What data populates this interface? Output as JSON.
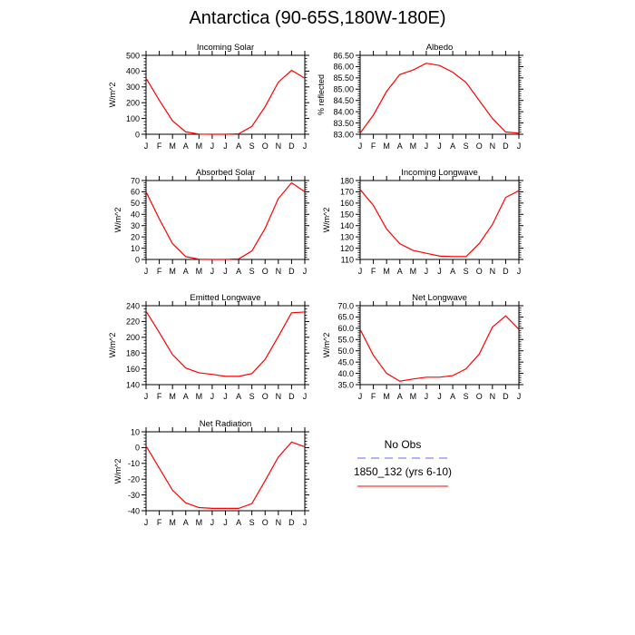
{
  "title": "Antarctica (90-65S,180W-180E)",
  "colors": {
    "model_line": "#ff0000",
    "obs_line": "#6666ff",
    "axis": "#000000",
    "background": "#ffffff"
  },
  "legend": {
    "obs_label": "No Obs",
    "model_label": "1850_132 (yrs 6-10)"
  },
  "chart_data": [
    {
      "type": "line",
      "title": "Incoming Solar",
      "ylabel": "W/m^2",
      "xlabel": "",
      "categories": [
        "J",
        "F",
        "M",
        "A",
        "M",
        "J",
        "J",
        "A",
        "S",
        "O",
        "N",
        "D",
        "J"
      ],
      "ylim": [
        0,
        500
      ],
      "yticks": [
        0,
        100,
        200,
        300,
        400,
        500
      ],
      "ytick_labels": [
        "0",
        "100",
        "200",
        "300",
        "400",
        "500"
      ],
      "series": [
        {
          "values": [
            355,
            215,
            85,
            15,
            1,
            0,
            0,
            3,
            50,
            175,
            330,
            405,
            355
          ]
        }
      ]
    },
    {
      "type": "line",
      "title": "Albedo",
      "ylabel": "% reflected",
      "xlabel": "",
      "categories": [
        "J",
        "F",
        "M",
        "A",
        "M",
        "J",
        "J",
        "A",
        "S",
        "O",
        "N",
        "D",
        "J"
      ],
      "ylim": [
        83.0,
        86.5
      ],
      "yticks": [
        83.0,
        83.5,
        84.0,
        84.5,
        85.0,
        85.5,
        86.0,
        86.5
      ],
      "ytick_labels": [
        "83.00",
        "83.50",
        "84.00",
        "84.50",
        "85.00",
        "85.50",
        "86.00",
        "86.50"
      ],
      "series": [
        {
          "values": [
            83.05,
            83.85,
            84.9,
            85.65,
            85.85,
            86.15,
            86.05,
            85.75,
            85.3,
            84.5,
            83.7,
            83.1,
            83.05
          ]
        }
      ]
    },
    {
      "type": "line",
      "title": "Absorbed Solar",
      "ylabel": "W/m^2",
      "xlabel": "",
      "categories": [
        "J",
        "F",
        "M",
        "A",
        "M",
        "J",
        "J",
        "A",
        "S",
        "O",
        "N",
        "D",
        "J"
      ],
      "ylim": [
        0,
        70
      ],
      "yticks": [
        0,
        10,
        20,
        30,
        40,
        50,
        60,
        70
      ],
      "ytick_labels": [
        "0",
        "10",
        "20",
        "30",
        "40",
        "50",
        "60",
        "70"
      ],
      "series": [
        {
          "values": [
            60,
            36,
            14,
            2.5,
            0.2,
            0,
            0,
            0.5,
            7.5,
            27.5,
            54,
            68,
            60
          ]
        }
      ]
    },
    {
      "type": "line",
      "title": "Incoming Longwave",
      "ylabel": "W/m^2",
      "xlabel": "",
      "categories": [
        "J",
        "F",
        "M",
        "A",
        "M",
        "J",
        "J",
        "A",
        "S",
        "O",
        "N",
        "D",
        "J"
      ],
      "ylim": [
        110,
        180
      ],
      "yticks": [
        110,
        120,
        130,
        140,
        150,
        160,
        170,
        180
      ],
      "ytick_labels": [
        "110",
        "120",
        "130",
        "140",
        "150",
        "160",
        "170",
        "180"
      ],
      "series": [
        {
          "values": [
            172,
            158,
            137,
            124,
            118,
            115.5,
            113,
            112.5,
            112.5,
            124,
            141,
            165,
            171
          ]
        }
      ]
    },
    {
      "type": "line",
      "title": "Emitted Longwave",
      "ylabel": "W/m^2",
      "xlabel": "",
      "categories": [
        "J",
        "F",
        "M",
        "A",
        "M",
        "J",
        "J",
        "A",
        "S",
        "O",
        "N",
        "D",
        "J"
      ],
      "ylim": [
        140,
        240
      ],
      "yticks": [
        140,
        160,
        180,
        200,
        220,
        240
      ],
      "ytick_labels": [
        "140",
        "160",
        "180",
        "200",
        "220",
        "240"
      ],
      "series": [
        {
          "values": [
            233,
            206,
            178,
            161,
            155,
            153,
            150.5,
            150.5,
            154,
            172,
            201,
            231,
            232
          ]
        }
      ]
    },
    {
      "type": "line",
      "title": "Net Longwave",
      "ylabel": "W/m^2",
      "xlabel": "",
      "categories": [
        "J",
        "F",
        "M",
        "A",
        "M",
        "J",
        "J",
        "A",
        "S",
        "O",
        "N",
        "D",
        "J"
      ],
      "ylim": [
        35,
        70
      ],
      "yticks": [
        35,
        40,
        45,
        50,
        55,
        60,
        65,
        70
      ],
      "ytick_labels": [
        "35.0",
        "40.0",
        "45.0",
        "50.0",
        "55.0",
        "60.0",
        "65.0",
        "70.0"
      ],
      "series": [
        {
          "values": [
            59.5,
            48,
            40,
            36.5,
            37.5,
            38.3,
            38.3,
            39,
            42,
            48.5,
            60.5,
            65.5,
            59.5
          ]
        }
      ]
    },
    {
      "type": "line",
      "title": "Net Radiation",
      "ylabel": "W/m^2",
      "xlabel": "",
      "categories": [
        "J",
        "F",
        "M",
        "A",
        "M",
        "J",
        "J",
        "A",
        "S",
        "O",
        "N",
        "D",
        "J"
      ],
      "ylim": [
        -40,
        10
      ],
      "yticks": [
        -40,
        -30,
        -20,
        -10,
        0,
        10
      ],
      "ytick_labels": [
        "-40",
        "-30",
        "-20",
        "-10",
        "0",
        "10"
      ],
      "series": [
        {
          "values": [
            1,
            -13,
            -27,
            -35,
            -38,
            -38.5,
            -38.5,
            -38.5,
            -35.5,
            -21,
            -6,
            3.5,
            0.5
          ]
        }
      ]
    }
  ]
}
